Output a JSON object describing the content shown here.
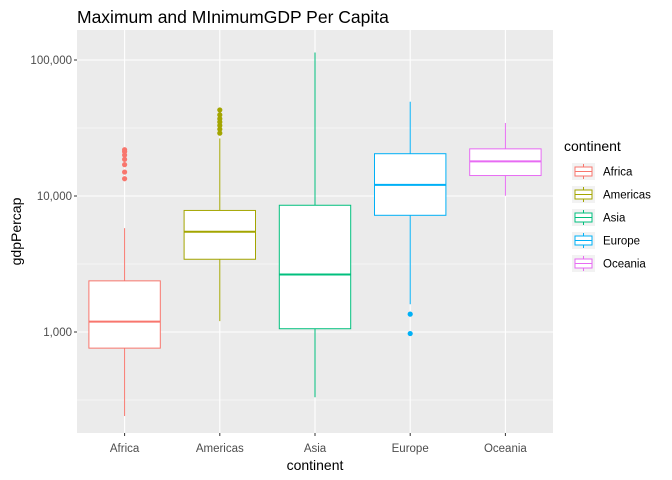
{
  "chart_data": {
    "type": "box",
    "title": "Maximum and MInimumGDP Per Capita",
    "xlabel": "continent",
    "ylabel": "gdpPercap",
    "y_scale": "log10",
    "ylim": [
      165,
      200000
    ],
    "y_ticks": [
      {
        "value": 1000,
        "label": "1,000"
      },
      {
        "value": 10000,
        "label": "10,000"
      },
      {
        "value": 100000,
        "label": "100,000"
      }
    ],
    "grid": true,
    "legend": {
      "title": "continent",
      "position": "right"
    },
    "categories": [
      "Africa",
      "Americas",
      "Asia",
      "Europe",
      "Oceania"
    ],
    "series": [
      {
        "name": "Africa",
        "color": "#F8766D",
        "whisker_low": 241,
        "q1": 761,
        "median": 1192,
        "q3": 2377,
        "whisker_high": 5800,
        "outliers": [
          13400,
          15000,
          17000,
          18600,
          20000,
          21200,
          21900
        ]
      },
      {
        "name": "Americas",
        "color": "#A3A500",
        "whisker_low": 1202,
        "q1": 3427,
        "median": 5465,
        "q3": 7830,
        "whisker_high": 26500,
        "outliers": [
          29000,
          31000,
          33000,
          35000,
          37000,
          39500,
          42952
        ]
      },
      {
        "name": "Asia",
        "color": "#00BF7D",
        "whisker_low": 331,
        "q1": 1057,
        "median": 2647,
        "q3": 8549,
        "whisker_high": 113523,
        "outliers": []
      },
      {
        "name": "Europe",
        "color": "#00B0F6",
        "whisker_low": 1600,
        "q1": 7213,
        "median": 12082,
        "q3": 20461,
        "whisker_high": 49357,
        "outliers": [
          974,
          1353
        ]
      },
      {
        "name": "Oceania",
        "color": "#E76BF3",
        "whisker_low": 10040,
        "q1": 14142,
        "median": 17983,
        "q3": 22214,
        "whisker_high": 34435,
        "outliers": []
      }
    ]
  }
}
